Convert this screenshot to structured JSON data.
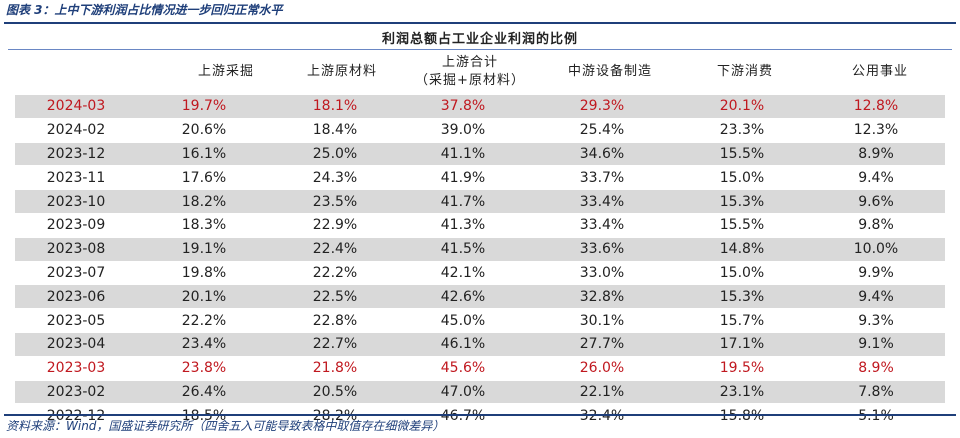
{
  "caption": "图表 3：上中下游利润占比情况进一步回归正常水平",
  "table": {
    "group_title": "利润总额占工业企业利润的比例",
    "columns": [
      "",
      "上游采掘",
      "上游原材料",
      "上游合计",
      "中游设备制造",
      "下游消费",
      "公用事业"
    ],
    "column_sub": {
      "3": "（采掘+原材料）"
    },
    "highlight_color": "#c0181f",
    "rows": [
      {
        "date": "2024-03",
        "values": [
          "19.7%",
          "18.1%",
          "37.8%",
          "29.3%",
          "20.1%",
          "12.8%"
        ],
        "highlight": true
      },
      {
        "date": "2024-02",
        "values": [
          "20.6%",
          "18.4%",
          "39.0%",
          "25.4%",
          "23.3%",
          "12.3%"
        ],
        "highlight": false
      },
      {
        "date": "2023-12",
        "values": [
          "16.1%",
          "25.0%",
          "41.1%",
          "34.6%",
          "15.5%",
          "8.9%"
        ],
        "highlight": false
      },
      {
        "date": "2023-11",
        "values": [
          "17.6%",
          "24.3%",
          "41.9%",
          "33.7%",
          "15.0%",
          "9.4%"
        ],
        "highlight": false
      },
      {
        "date": "2023-10",
        "values": [
          "18.2%",
          "23.5%",
          "41.7%",
          "33.4%",
          "15.3%",
          "9.6%"
        ],
        "highlight": false
      },
      {
        "date": "2023-09",
        "values": [
          "18.3%",
          "22.9%",
          "41.3%",
          "33.4%",
          "15.5%",
          "9.8%"
        ],
        "highlight": false
      },
      {
        "date": "2023-08",
        "values": [
          "19.1%",
          "22.4%",
          "41.5%",
          "33.6%",
          "14.8%",
          "10.0%"
        ],
        "highlight": false
      },
      {
        "date": "2023-07",
        "values": [
          "19.8%",
          "22.2%",
          "42.1%",
          "33.0%",
          "15.0%",
          "9.9%"
        ],
        "highlight": false
      },
      {
        "date": "2023-06",
        "values": [
          "20.1%",
          "22.5%",
          "42.6%",
          "32.8%",
          "15.3%",
          "9.4%"
        ],
        "highlight": false
      },
      {
        "date": "2023-05",
        "values": [
          "22.2%",
          "22.8%",
          "45.0%",
          "30.1%",
          "15.7%",
          "9.3%"
        ],
        "highlight": false
      },
      {
        "date": "2023-04",
        "values": [
          "23.4%",
          "22.7%",
          "46.1%",
          "27.7%",
          "17.1%",
          "9.1%"
        ],
        "highlight": false
      },
      {
        "date": "2023-03",
        "values": [
          "23.8%",
          "21.8%",
          "45.6%",
          "26.0%",
          "19.5%",
          "8.9%"
        ],
        "highlight": true
      },
      {
        "date": "2023-02",
        "values": [
          "26.4%",
          "20.5%",
          "47.0%",
          "22.1%",
          "23.1%",
          "7.8%"
        ],
        "highlight": false
      },
      {
        "date": "2022-12",
        "values": [
          "18.5%",
          "28.2%",
          "46.7%",
          "32.4%",
          "15.8%",
          "5.1%"
        ],
        "highlight": false
      }
    ]
  },
  "source": "资料来源：Wind，国盛证券研究所（四舍五入可能导致表格中取值存在细微差异）"
}
